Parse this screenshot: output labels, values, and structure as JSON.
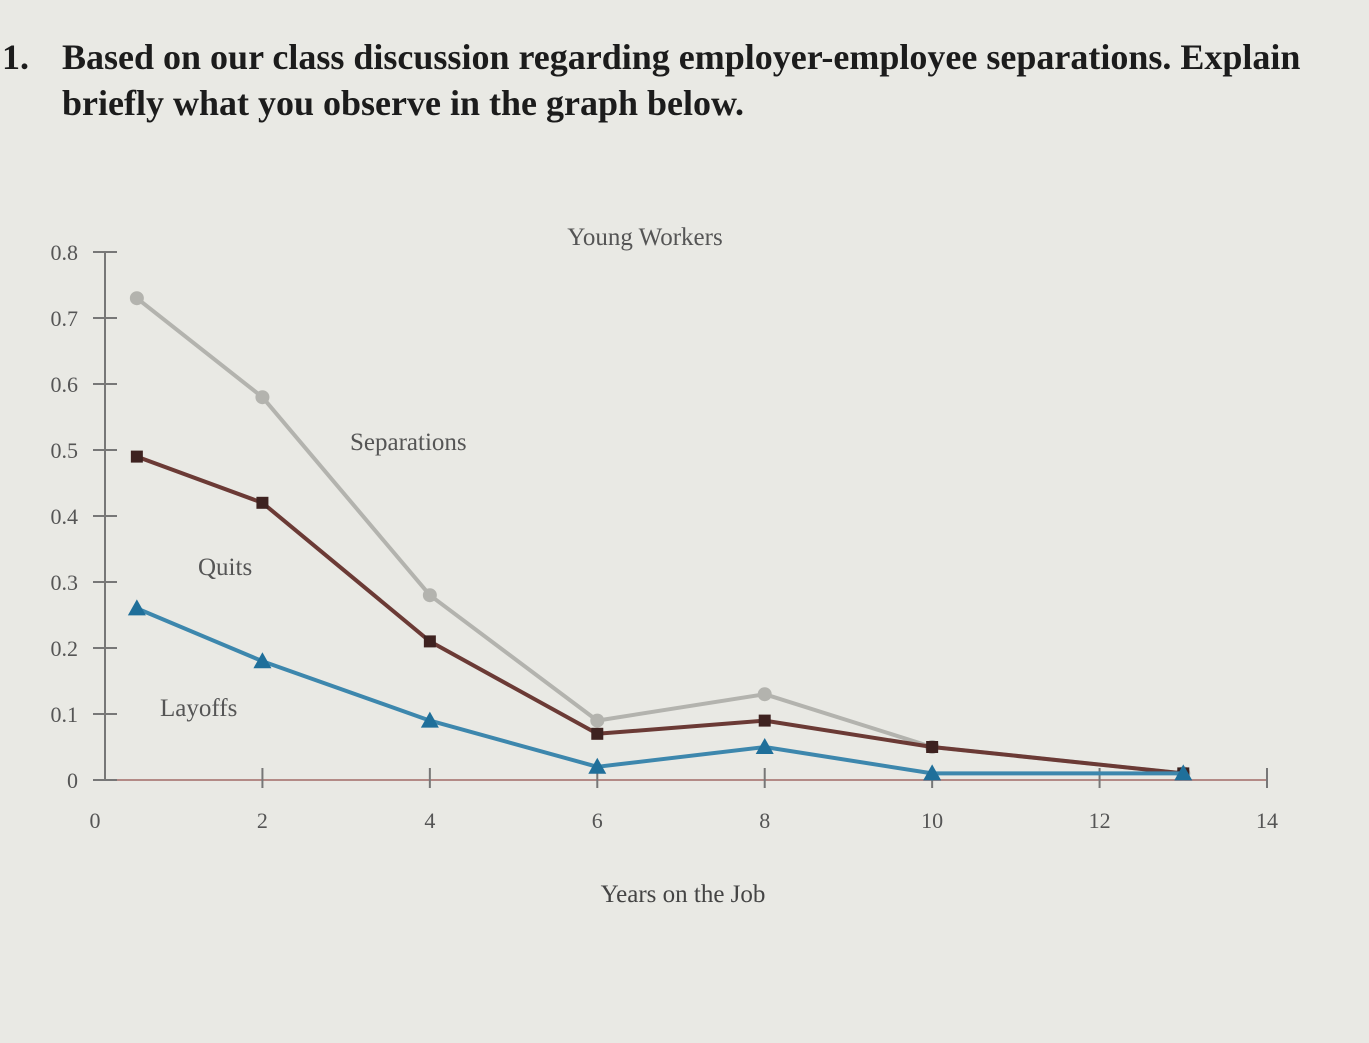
{
  "question": {
    "number": "1.",
    "text": "Based on our class discussion regarding employer-employee separations. Explain briefly what you observe in the graph below."
  },
  "chart_data": {
    "type": "line",
    "title": "Young Workers",
    "xlabel": "Years on the Job",
    "ylabel": "",
    "xlim": [
      0,
      14
    ],
    "ylim": [
      0,
      0.8
    ],
    "x_ticks": [
      "0",
      "2",
      "4",
      "6",
      "8",
      "10",
      "12",
      "14"
    ],
    "y_ticks": [
      "0",
      "0.1",
      "0.2",
      "0.3",
      "0.4",
      "0.5",
      "0.6",
      "0.7",
      "0.8"
    ],
    "grid": false,
    "x": [
      0.5,
      2,
      4,
      6,
      8,
      10,
      13
    ],
    "series": [
      {
        "name": "Separations",
        "color": "#b3b3ae",
        "marker": "circle",
        "values": [
          0.73,
          0.58,
          0.28,
          0.09,
          0.13,
          0.05,
          0.01
        ]
      },
      {
        "name": "Quits",
        "color": "#6b3a35",
        "marker": "square",
        "values": [
          0.49,
          0.42,
          0.21,
          0.07,
          0.09,
          0.05,
          0.01
        ]
      },
      {
        "name": "Layoffs",
        "color": "#3d87ad",
        "marker": "triangle",
        "values": [
          0.26,
          0.18,
          0.09,
          0.02,
          0.05,
          0.01,
          0.01
        ]
      }
    ]
  }
}
